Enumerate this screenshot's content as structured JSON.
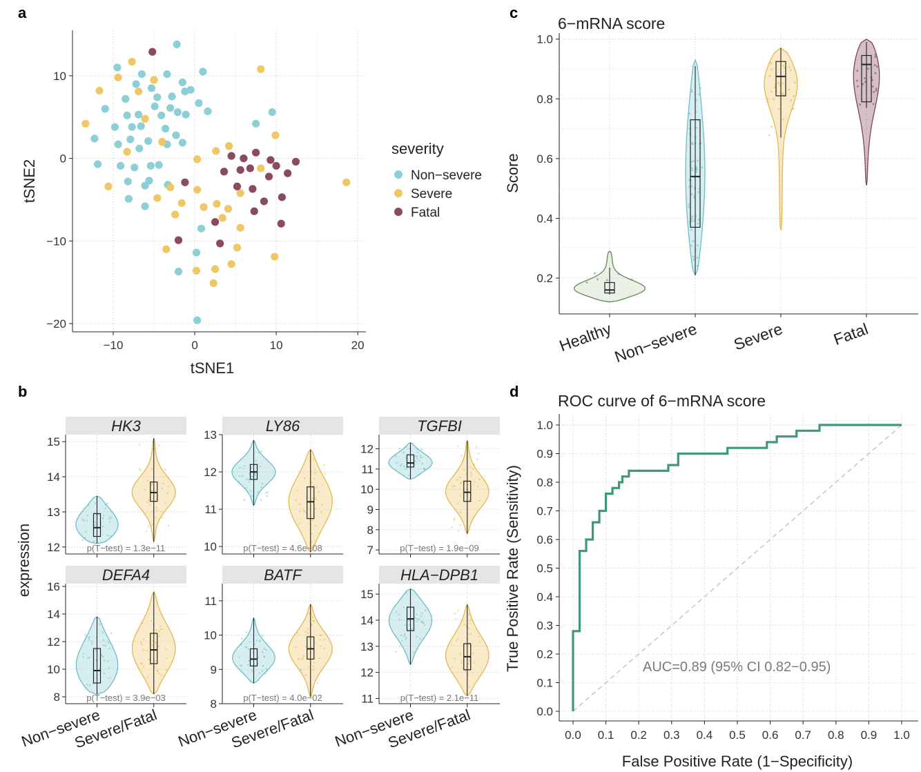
{
  "colors": {
    "non_severe": "#8ccfd6",
    "severe": "#efc764",
    "fatal": "#8a4a5f",
    "healthy_fill": "#c8d8bd",
    "healthy_line": "#5d8a52",
    "non_severe_line": "#6dbcc6",
    "severe_line": "#e2b84e",
    "fatal_line": "#7d4457",
    "roc": "#3d9a73",
    "diag": "#c8c8c8"
  },
  "panels": {
    "a": "a",
    "b": "b",
    "c": "c",
    "d": "d"
  },
  "chart_data": [
    {
      "id": "a",
      "type": "scatter",
      "xlabel": "tSNE1",
      "ylabel": "tSNE2",
      "xlim": [
        -15,
        21
      ],
      "ylim": [
        -21,
        15.5
      ],
      "xticks": [
        -10,
        0,
        10,
        20
      ],
      "xtick_labels": [
        "−10",
        "0",
        "10",
        "20"
      ],
      "yticks": [
        -20,
        -10,
        0,
        10
      ],
      "ytick_labels": [
        "−20",
        "−10",
        "0",
        "10"
      ],
      "legend": {
        "title": "severity",
        "position": "right",
        "entries": [
          "Non−severe",
          "Severe",
          "Fatal"
        ]
      },
      "series": [
        {
          "name": "Non−severe",
          "color": "non_severe",
          "points": [
            [
              -2.2,
              13.8
            ],
            [
              -9.5,
              11
            ],
            [
              -6.5,
              10.2
            ],
            [
              -3.4,
              10.2
            ],
            [
              -1.5,
              9.2
            ],
            [
              1,
              10.5
            ],
            [
              -7.2,
              9
            ],
            [
              -5.3,
              8.5
            ],
            [
              -8.5,
              7.2
            ],
            [
              -4.6,
              7.4
            ],
            [
              -2.8,
              7.5
            ],
            [
              -1.2,
              8.1
            ],
            [
              -0.5,
              8.3
            ],
            [
              -11,
              6
            ],
            [
              -4.9,
              6.3
            ],
            [
              -3,
              6.1
            ],
            [
              -2.1,
              5.6
            ],
            [
              0.5,
              6.7
            ],
            [
              1.6,
              5.7
            ],
            [
              -8.3,
              5.2
            ],
            [
              -6.9,
              5.3
            ],
            [
              -4.1,
              5.2
            ],
            [
              -1.1,
              5.3
            ],
            [
              -9.8,
              3.8
            ],
            [
              -7.7,
              3.8
            ],
            [
              -6.6,
              3.9
            ],
            [
              -3.6,
              3.6
            ],
            [
              -12.3,
              2.4
            ],
            [
              -7.9,
              2.3
            ],
            [
              -5.7,
              2.1
            ],
            [
              -2.3,
              2.8
            ],
            [
              -3.4,
              1.7
            ],
            [
              -6.8,
              1.2
            ],
            [
              -1.5,
              1.9
            ],
            [
              -9.4,
              1.7
            ],
            [
              -11.9,
              -0.7
            ],
            [
              -9.1,
              -0.9
            ],
            [
              -7.4,
              -1.1
            ],
            [
              -5.4,
              -0.9
            ],
            [
              -4.4,
              -0.8
            ],
            [
              -8.2,
              -2.8
            ],
            [
              -6.1,
              -3.3
            ],
            [
              -5.6,
              -2.7
            ],
            [
              -3.3,
              -3.2
            ],
            [
              -8.1,
              -4.9
            ],
            [
              -6.1,
              -5.8
            ],
            [
              0.8,
              -8.5
            ],
            [
              0.2,
              -11.4
            ],
            [
              -2,
              -13.7
            ],
            [
              0.3,
              -19.6
            ],
            [
              7.5,
              4.2
            ],
            [
              9.5,
              5.6
            ]
          ]
        },
        {
          "name": "Severe",
          "color": "severe",
          "points": [
            [
              -7.7,
              11.7
            ],
            [
              -9.4,
              9.8
            ],
            [
              -11.7,
              8.2
            ],
            [
              -6.9,
              8.1
            ],
            [
              -5,
              9.5
            ],
            [
              -13.4,
              4.2
            ],
            [
              -6.1,
              4.8
            ],
            [
              -4,
              2
            ],
            [
              -8.3,
              0.8
            ],
            [
              -10.6,
              -3.4
            ],
            [
              -4.6,
              -4.8
            ],
            [
              -3,
              -3.5
            ],
            [
              0.3,
              -0.1
            ],
            [
              0.3,
              -3.8
            ],
            [
              -1.6,
              -5.4
            ],
            [
              1.1,
              -5.9
            ],
            [
              2.7,
              -5.5
            ],
            [
              4.1,
              -6.1
            ],
            [
              5.6,
              -4.2
            ],
            [
              -2.4,
              -6.8
            ],
            [
              3.4,
              -7.2
            ],
            [
              5.6,
              -8.4
            ],
            [
              -3.5,
              -11
            ],
            [
              5.2,
              -10.8
            ],
            [
              2.5,
              -13.4
            ],
            [
              0.2,
              -13.6
            ],
            [
              4.5,
              -12.8
            ],
            [
              2.3,
              -15.1
            ],
            [
              2.6,
              0.9
            ],
            [
              4.2,
              1.5
            ],
            [
              8.1,
              -1.2
            ],
            [
              9.9,
              2.8
            ],
            [
              8.1,
              10.8
            ],
            [
              9.8,
              -11.9
            ],
            [
              18.6,
              -2.9
            ]
          ]
        },
        {
          "name": "Fatal",
          "color": "fatal",
          "points": [
            [
              -5.2,
              12.9
            ],
            [
              4.5,
              0.3
            ],
            [
              6,
              0
            ],
            [
              7.5,
              0.7
            ],
            [
              9.3,
              -0.2
            ],
            [
              5.6,
              -1.4
            ],
            [
              6.8,
              -1.2
            ],
            [
              3.6,
              -1.6
            ],
            [
              12.4,
              -0.4
            ],
            [
              10,
              -0.9
            ],
            [
              9.1,
              -2.2
            ],
            [
              11.4,
              -1.8
            ],
            [
              -1.2,
              -2.9
            ],
            [
              5.2,
              -3.4
            ],
            [
              7.1,
              -3.7
            ],
            [
              8.5,
              -5.2
            ],
            [
              10.7,
              -4.7
            ],
            [
              2.5,
              -7.7
            ],
            [
              7.3,
              -6.4
            ],
            [
              10.6,
              -7.9
            ],
            [
              3.1,
              -10.3
            ],
            [
              -2,
              -9.9
            ]
          ]
        }
      ]
    },
    {
      "id": "b",
      "type": "violin",
      "ylabel": "expression",
      "groups": [
        "Non−severe",
        "Severe/Fatal"
      ],
      "facets": [
        {
          "gene": "HK3",
          "ylim": [
            11.8,
            15.2
          ],
          "yticks": [
            12,
            13,
            14,
            15
          ],
          "pvalue": "1.3e−11",
          "violins": [
            {
              "group": "Non−severe",
              "min": 12.1,
              "q1": 12.3,
              "median": 12.55,
              "q3": 12.95,
              "max": 13.45
            },
            {
              "group": "Severe/Fatal",
              "min": 12.15,
              "q1": 13.3,
              "median": 13.55,
              "q3": 13.85,
              "max": 15.1
            }
          ]
        },
        {
          "gene": "LY86",
          "ylim": [
            9.8,
            13.0
          ],
          "yticks": [
            10,
            11,
            12,
            13
          ],
          "pvalue": "4.6e−08",
          "violins": [
            {
              "group": "Non−severe",
              "min": 11.1,
              "q1": 11.8,
              "median": 12.0,
              "q3": 12.2,
              "max": 12.85
            },
            {
              "group": "Severe/Fatal",
              "min": 9.85,
              "q1": 10.75,
              "median": 11.2,
              "q3": 11.6,
              "max": 12.6
            }
          ]
        },
        {
          "gene": "TGFBI",
          "ylim": [
            6.8,
            12.7
          ],
          "yticks": [
            7,
            8,
            9,
            10,
            11,
            12
          ],
          "pvalue": "1.9e−09",
          "violins": [
            {
              "group": "Non−severe",
              "min": 10.5,
              "q1": 11.1,
              "median": 11.3,
              "q3": 11.7,
              "max": 12.3
            },
            {
              "group": "Severe/Fatal",
              "min": 7.8,
              "q1": 9.4,
              "median": 9.85,
              "q3": 10.4,
              "max": 12.4
            }
          ]
        },
        {
          "gene": "DEFA4",
          "ylim": [
            7.5,
            16.2
          ],
          "yticks": [
            8,
            10,
            12,
            14,
            16
          ],
          "pvalue": "3.9e−03",
          "violins": [
            {
              "group": "Non−severe",
              "min": 8.2,
              "q1": 9.0,
              "median": 9.9,
              "q3": 11.5,
              "max": 13.8
            },
            {
              "group": "Severe/Fatal",
              "min": 8.2,
              "q1": 10.4,
              "median": 11.4,
              "q3": 12.6,
              "max": 15.6
            }
          ]
        },
        {
          "gene": "BATF",
          "ylim": [
            8.0,
            11.5
          ],
          "yticks": [
            8,
            9,
            10,
            11
          ],
          "pvalue": "4.0e−02",
          "violins": [
            {
              "group": "Non−severe",
              "min": 8.6,
              "q1": 9.1,
              "median": 9.3,
              "q3": 9.6,
              "max": 10.5
            },
            {
              "group": "Severe/Fatal",
              "min": 8.2,
              "q1": 9.3,
              "median": 9.6,
              "q3": 9.95,
              "max": 10.9
            }
          ]
        },
        {
          "gene": "HLA−DPB1",
          "ylim": [
            10.8,
            15.4
          ],
          "yticks": [
            11,
            12,
            13,
            14,
            15
          ],
          "pvalue": "2.1e−11",
          "violins": [
            {
              "group": "Non−severe",
              "min": 12.3,
              "q1": 13.6,
              "median": 14.05,
              "q3": 14.5,
              "max": 15.2
            },
            {
              "group": "Severe/Fatal",
              "min": 11.1,
              "q1": 12.1,
              "median": 12.6,
              "q3": 13.1,
              "max": 14.6
            }
          ]
        }
      ]
    },
    {
      "id": "c",
      "type": "violin",
      "title": "6−mRNA score",
      "ylabel": "Score",
      "ylim": [
        0.08,
        1.02
      ],
      "yticks": [
        0.2,
        0.4,
        0.6,
        0.8,
        1.0
      ],
      "ytick_labels": [
        "0.2",
        "0.4",
        "0.6",
        "0.8",
        "1.0"
      ],
      "categories": [
        "Healthy",
        "Non−severe",
        "Severe",
        "Fatal"
      ],
      "violins": [
        {
          "group": "Healthy",
          "min": 0.145,
          "q1": 0.15,
          "median": 0.16,
          "q3": 0.185,
          "max": 0.235,
          "vmin": 0.12,
          "vmax": 0.29
        },
        {
          "group": "Non−severe",
          "min": 0.21,
          "q1": 0.37,
          "median": 0.54,
          "q3": 0.73,
          "max": 0.91,
          "vmin": 0.21,
          "vmax": 0.93
        },
        {
          "group": "Severe",
          "min": 0.67,
          "q1": 0.81,
          "median": 0.875,
          "q3": 0.925,
          "max": 0.97,
          "vmin": 0.36,
          "vmax": 0.97
        },
        {
          "group": "Fatal",
          "min": 0.77,
          "q1": 0.79,
          "median": 0.915,
          "q3": 0.945,
          "max": 0.99,
          "vmin": 0.51,
          "vmax": 1.0
        }
      ]
    },
    {
      "id": "d",
      "type": "line",
      "title": "ROC curve of 6−mRNA score",
      "xlabel": "False Positive Rate (1−Specificity)",
      "ylabel": "True Positive Rate (Sensitivity)",
      "xlim": [
        -0.01,
        1.02
      ],
      "ylim": [
        -0.03,
        1.04
      ],
      "ticks": [
        0,
        0.1,
        0.2,
        0.3,
        0.4,
        0.5,
        0.6,
        0.7,
        0.8,
        0.9,
        1.0
      ],
      "tick_labels": [
        "0.0",
        "0.1",
        "0.2",
        "0.3",
        "0.4",
        "0.5",
        "0.6",
        "0.7",
        "0.8",
        "0.9",
        "1.0"
      ],
      "annotation": "AUC=0.89 (95% CI 0.82−0.95)",
      "roc_x": [
        0,
        0,
        0.02,
        0.02,
        0.04,
        0.04,
        0.06,
        0.06,
        0.08,
        0.08,
        0.1,
        0.1,
        0.12,
        0.12,
        0.14,
        0.14,
        0.15,
        0.15,
        0.17,
        0.17,
        0.29,
        0.29,
        0.32,
        0.32,
        0.47,
        0.47,
        0.59,
        0.59,
        0.62,
        0.62,
        0.68,
        0.68,
        0.75,
        0.75,
        1.0
      ],
      "roc_y": [
        0,
        0.28,
        0.28,
        0.56,
        0.56,
        0.6,
        0.6,
        0.66,
        0.66,
        0.7,
        0.7,
        0.76,
        0.76,
        0.78,
        0.78,
        0.8,
        0.8,
        0.82,
        0.82,
        0.84,
        0.84,
        0.86,
        0.86,
        0.9,
        0.9,
        0.92,
        0.92,
        0.94,
        0.94,
        0.96,
        0.96,
        0.98,
        0.98,
        1.0,
        1.0
      ]
    }
  ]
}
